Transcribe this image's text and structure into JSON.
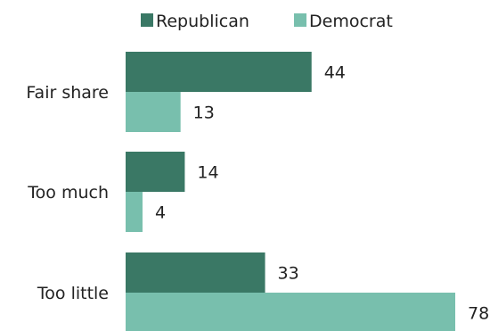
{
  "chart_data": {
    "type": "bar",
    "orientation": "horizontal",
    "categories": [
      "Fair share",
      "Too much",
      "Too little"
    ],
    "series": [
      {
        "name": "Republican",
        "values": [
          44,
          14,
          33
        ],
        "color": "#3a7865"
      },
      {
        "name": "Democrat",
        "values": [
          13,
          4,
          78
        ],
        "color": "#78bfad"
      }
    ],
    "xlim": [
      0,
      78
    ],
    "grid": false,
    "legend_position": "top",
    "data_labels": true
  }
}
